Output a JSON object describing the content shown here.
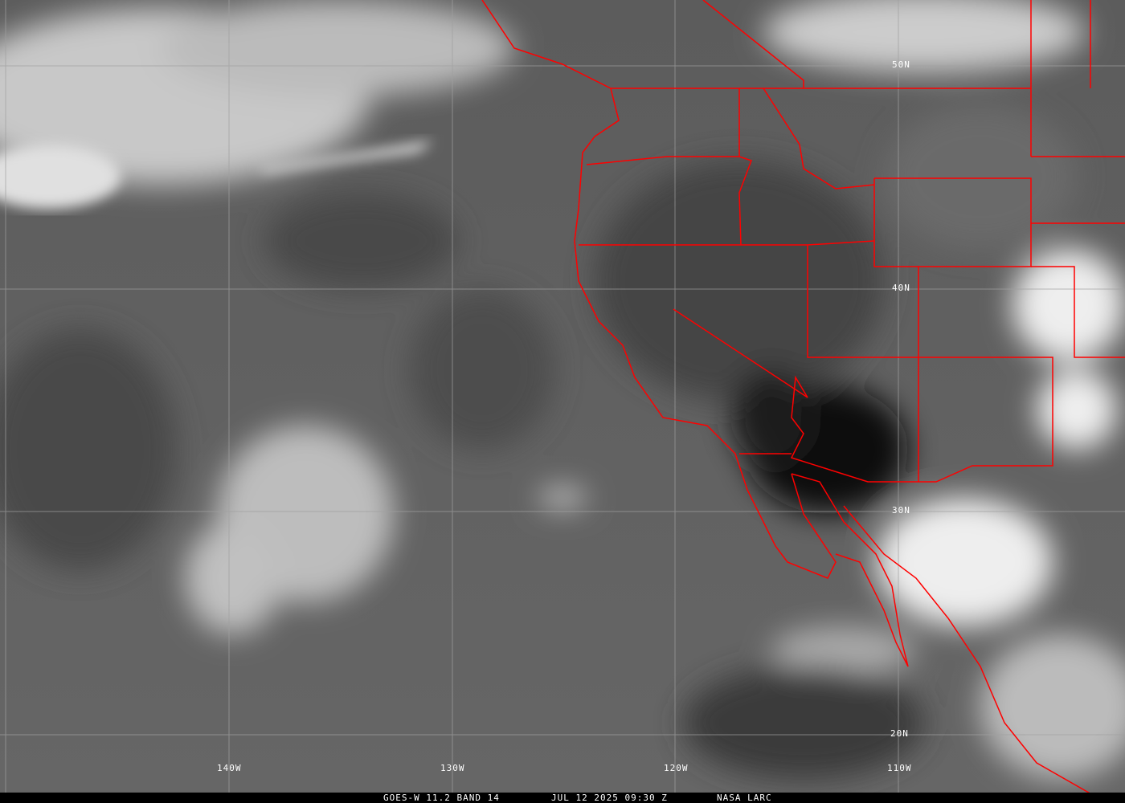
{
  "caption": {
    "satellite": "GOES-W 11.2 BAND 14",
    "datetime": "JUL 12 2025 09:30 Z",
    "credit": "NASA LARC"
  },
  "grid": {
    "longitudes": [
      "140W",
      "130W",
      "120W",
      "110W"
    ],
    "latitudes": [
      "50N",
      "40N",
      "30N",
      "20N"
    ]
  },
  "colors": {
    "borders": "#ff0000",
    "grid": "#a0a0a0",
    "background": "#000000"
  }
}
